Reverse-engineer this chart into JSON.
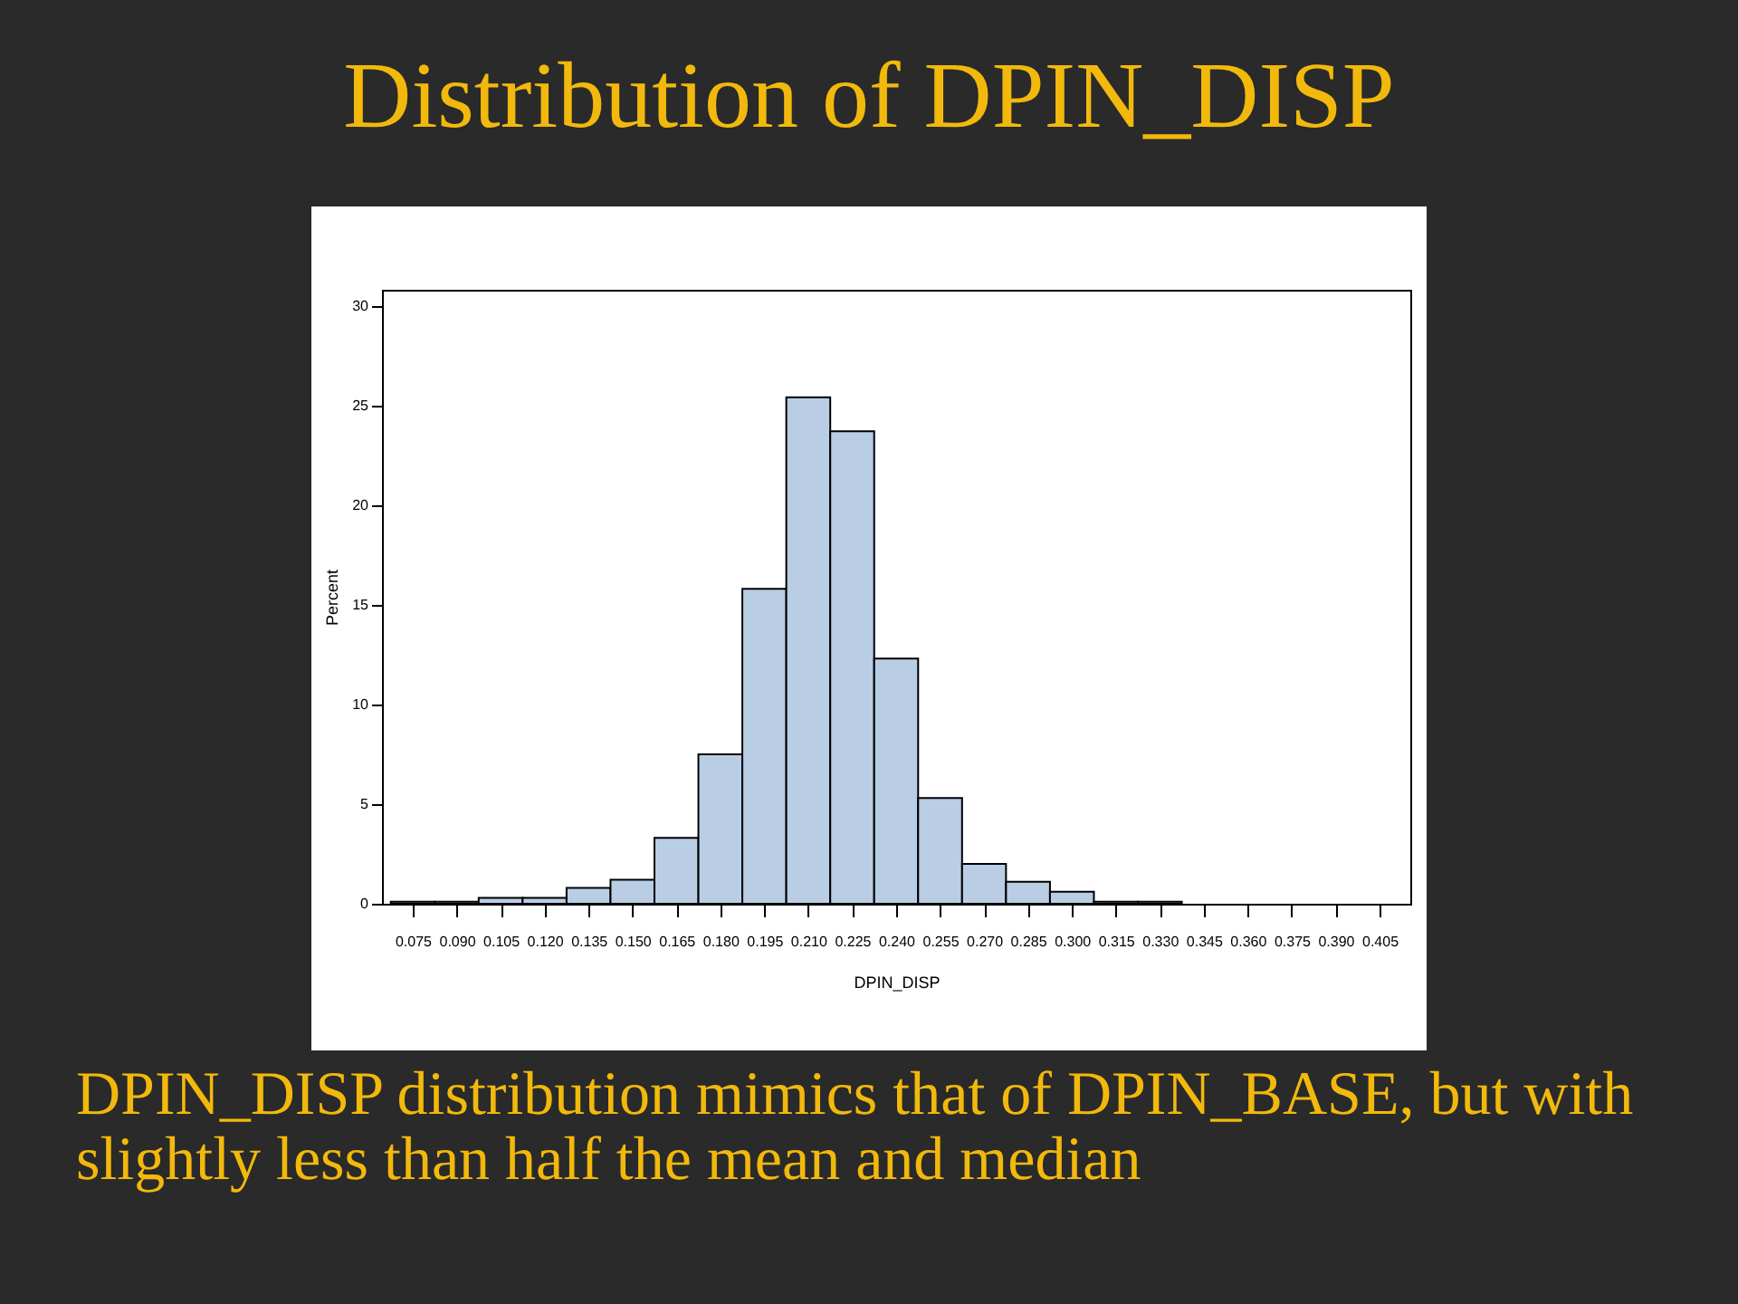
{
  "chart_data": {
    "type": "histogram",
    "title": "Distribution of DPIN_DISP",
    "xlabel": "DPIN_DISP",
    "ylabel": "Percent",
    "annotations": [
      "DPIN_DISP distribution mimics that of DPIN_BASE, but with slightly less than half the mean and median"
    ],
    "bins": [
      0.0675,
      0.0825,
      0.0975,
      0.1125,
      0.1275,
      0.1425,
      0.1575,
      0.1725,
      0.1875,
      0.2025,
      0.2175,
      0.2325,
      0.2475,
      0.2625,
      0.2775,
      0.2925,
      0.3075,
      0.3225,
      0.3375
    ],
    "values": [
      0.1,
      0.1,
      0.3,
      0.3,
      0.8,
      1.2,
      3.3,
      7.5,
      15.8,
      25.4,
      23.7,
      12.3,
      5.3,
      2.0,
      1.1,
      0.6,
      0.1,
      0.1
    ],
    "color": "#b9cde5",
    "xlim": [
      0.0645,
      0.4155
    ],
    "xticks": [
      0.075,
      {
        "value": 0.09,
        "label": "0.090"
      },
      0.105,
      {
        "value": 0.12,
        "label": "0.120"
      },
      0.135,
      {
        "value": 0.15,
        "label": "0.150"
      },
      0.165,
      {
        "value": 0.18,
        "label": "0.180"
      },
      0.195,
      {
        "value": 0.21,
        "label": "0.210"
      },
      0.225,
      {
        "value": 0.24,
        "label": "0.240"
      },
      0.255,
      {
        "value": 0.27,
        "label": "0.270"
      },
      0.285,
      {
        "value": 0.3,
        "label": "0.300"
      },
      0.315,
      {
        "value": 0.33,
        "label": "0.330"
      },
      0.345,
      {
        "value": 0.36,
        "label": "0.360"
      },
      0.375,
      {
        "value": 0.39,
        "label": "0.390"
      },
      0.405
    ],
    "ylim": [
      0,
      30.8
    ],
    "yticks": [
      0,
      5,
      10,
      15,
      20,
      25,
      30
    ]
  }
}
